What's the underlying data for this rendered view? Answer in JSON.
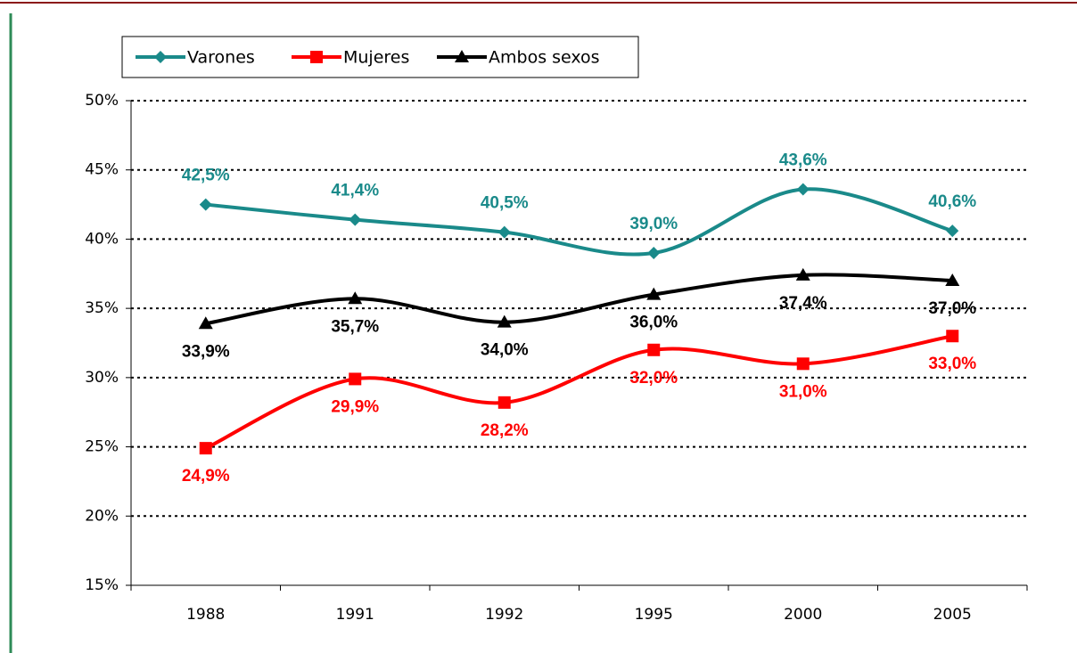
{
  "chart_data": {
    "type": "line",
    "categories": [
      "1988",
      "1991",
      "1992",
      "1995",
      "2000",
      "2005"
    ],
    "series": [
      {
        "name": "Varones",
        "color": "#1a8a8a",
        "marker": "diamond",
        "label_position": "above",
        "values": [
          42.5,
          41.4,
          40.5,
          39.0,
          43.6,
          40.6
        ],
        "value_labels": [
          "42,5%",
          "41,4%",
          "40,5%",
          "39,0%",
          "43,6%",
          "40,6%"
        ]
      },
      {
        "name": "Mujeres",
        "color": "#ff0000",
        "marker": "square",
        "label_position": "below",
        "values": [
          24.9,
          29.9,
          28.2,
          32.0,
          31.0,
          33.0
        ],
        "value_labels": [
          "24,9%",
          "29,9%",
          "28,2%",
          "32,0%",
          "31,0%",
          "33,0%"
        ]
      },
      {
        "name": "Ambos sexos",
        "color": "#000000",
        "marker": "triangle",
        "label_position": "below",
        "values": [
          33.9,
          35.7,
          34.0,
          36.0,
          37.4,
          37.0
        ],
        "value_labels": [
          "33,9%",
          "35,7%",
          "34,0%",
          "36,0%",
          "37,4%",
          "37,0%"
        ]
      }
    ],
    "ylim": [
      15,
      50
    ],
    "yticks": [
      {
        "value": 15,
        "label": "15%"
      },
      {
        "value": 20,
        "label": "20%"
      },
      {
        "value": 25,
        "label": "25%"
      },
      {
        "value": 30,
        "label": "30%"
      },
      {
        "value": 35,
        "label": "35%"
      },
      {
        "value": 40,
        "label": "40%"
      },
      {
        "value": 45,
        "label": "45%"
      },
      {
        "value": 50,
        "label": "50%"
      }
    ],
    "grid": true,
    "smooth": true,
    "legend": "top-left"
  }
}
